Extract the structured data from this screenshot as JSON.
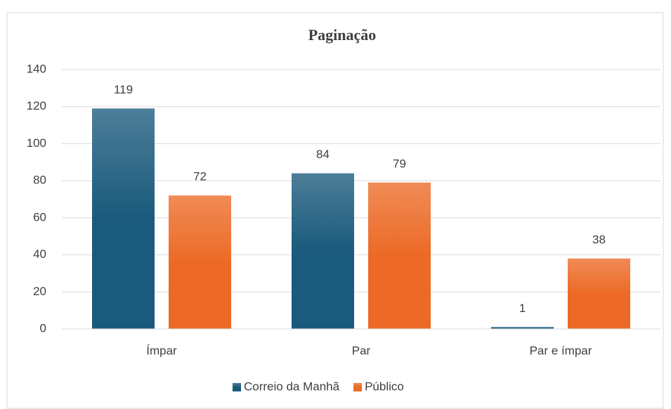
{
  "chart_data": {
    "type": "bar",
    "title": "Paginação",
    "categories": [
      "Ímpar",
      "Par",
      "Par e ímpar"
    ],
    "series": [
      {
        "name": "Correio da Manhã",
        "color": "#1a5a7c",
        "values": [
          119,
          84,
          1
        ]
      },
      {
        "name": "Público",
        "color": "#ec6a26",
        "values": [
          72,
          79,
          38
        ]
      }
    ],
    "ylim": [
      0,
      140
    ],
    "yticks": [
      0,
      20,
      40,
      60,
      80,
      100,
      120,
      140
    ],
    "grid": true,
    "legend": "bottom"
  }
}
